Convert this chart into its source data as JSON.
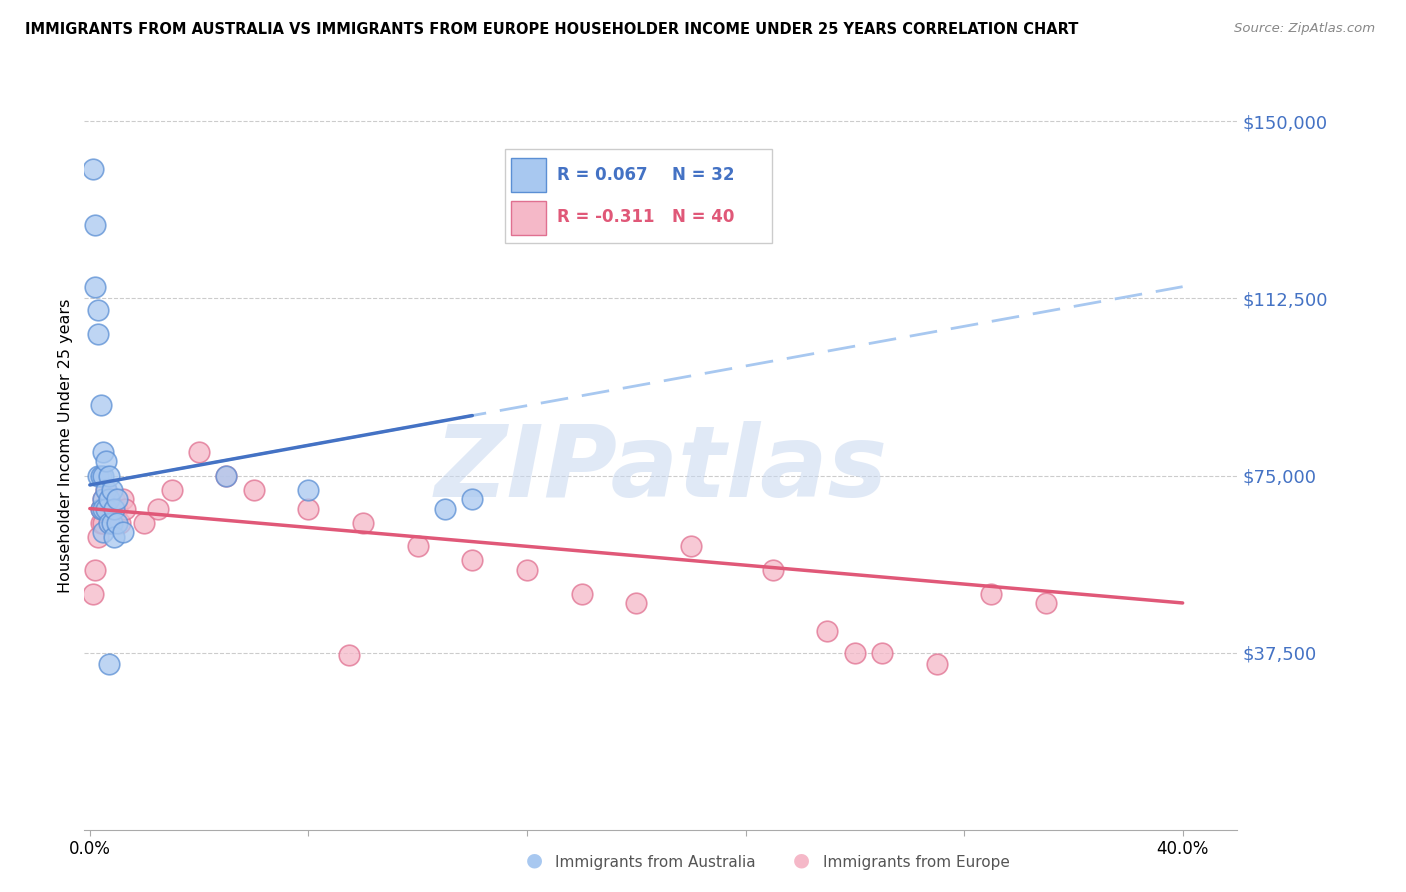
{
  "title": "IMMIGRANTS FROM AUSTRALIA VS IMMIGRANTS FROM EUROPE HOUSEHOLDER INCOME UNDER 25 YEARS CORRELATION CHART",
  "source": "Source: ZipAtlas.com",
  "ylabel": "Householder Income Under 25 years",
  "ytick_labels": [
    "$150,000",
    "$112,500",
    "$75,000",
    "$37,500"
  ],
  "ytick_values": [
    150000,
    112500,
    75000,
    37500
  ],
  "ymin": 0,
  "ymax": 162500,
  "xmin": -0.002,
  "xmax": 0.42,
  "legend_r_aus": "0.067",
  "legend_n_aus": "32",
  "legend_r_eur": "-0.311",
  "legend_n_eur": "40",
  "australia_fill": "#A8C8F0",
  "australia_edge": "#5B8FD4",
  "australia_line": "#4472C4",
  "australia_dash": "#A8C8F0",
  "europe_fill": "#F5B8C8",
  "europe_edge": "#E07090",
  "europe_line": "#E05878",
  "watermark": "ZIPatlas",
  "aus_R": 0.067,
  "eur_R": -0.311,
  "australia_x": [
    0.001,
    0.002,
    0.002,
    0.003,
    0.003,
    0.003,
    0.004,
    0.004,
    0.004,
    0.005,
    0.005,
    0.005,
    0.005,
    0.005,
    0.006,
    0.006,
    0.006,
    0.007,
    0.007,
    0.007,
    0.008,
    0.008,
    0.009,
    0.009,
    0.01,
    0.01,
    0.012,
    0.05,
    0.08,
    0.007,
    0.13,
    0.14
  ],
  "australia_y": [
    140000,
    128000,
    115000,
    110000,
    105000,
    75000,
    90000,
    75000,
    68000,
    80000,
    75000,
    70000,
    68000,
    63000,
    78000,
    72000,
    68000,
    75000,
    70000,
    65000,
    72000,
    65000,
    68000,
    62000,
    70000,
    65000,
    63000,
    75000,
    72000,
    35000,
    68000,
    70000
  ],
  "europe_x": [
    0.001,
    0.002,
    0.003,
    0.004,
    0.004,
    0.005,
    0.005,
    0.006,
    0.006,
    0.007,
    0.007,
    0.008,
    0.008,
    0.009,
    0.01,
    0.011,
    0.012,
    0.013,
    0.02,
    0.025,
    0.03,
    0.04,
    0.05,
    0.06,
    0.08,
    0.1,
    0.12,
    0.14,
    0.16,
    0.18,
    0.2,
    0.22,
    0.25,
    0.27,
    0.29,
    0.31,
    0.33,
    0.35,
    0.28,
    0.095
  ],
  "europe_y": [
    50000,
    55000,
    62000,
    65000,
    68000,
    65000,
    70000,
    68000,
    72000,
    65000,
    70000,
    68000,
    65000,
    70000,
    68000,
    65000,
    70000,
    68000,
    65000,
    68000,
    72000,
    80000,
    75000,
    72000,
    68000,
    65000,
    60000,
    57000,
    55000,
    50000,
    48000,
    60000,
    55000,
    42000,
    37500,
    35000,
    50000,
    48000,
    37500,
    37000
  ]
}
